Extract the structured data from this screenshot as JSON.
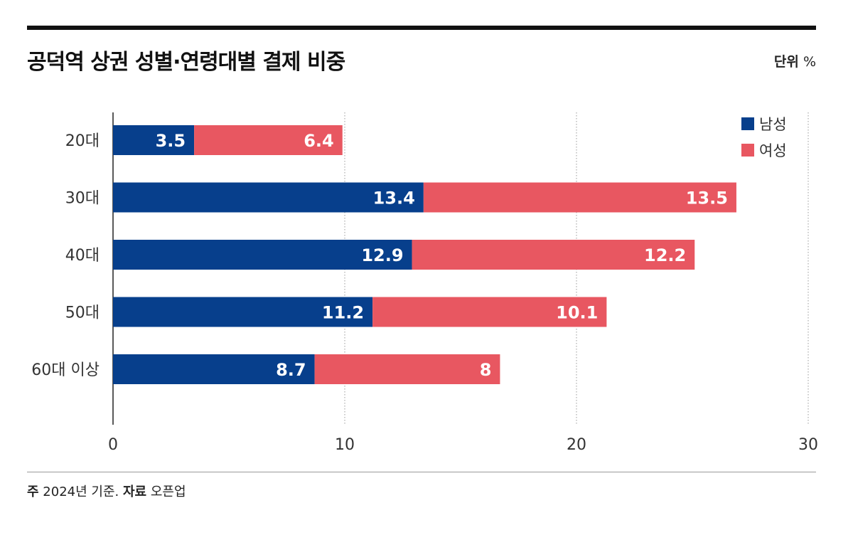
{
  "header": {
    "title": "공덕역 상권 성별·연령대별 결제 비중",
    "unit_label": "단위",
    "unit_value": "%"
  },
  "footer": {
    "note_label": "주",
    "note_text": "2024년 기준.",
    "source_label": "자료",
    "source_text": "오픈업"
  },
  "colors": {
    "male": "#073f8c",
    "female": "#e85761"
  },
  "chart_data": {
    "type": "bar",
    "orientation": "horizontal",
    "stacked": true,
    "categories": [
      "20대",
      "30대",
      "40대",
      "50대",
      "60대 이상"
    ],
    "series": [
      {
        "name": "남성",
        "values": [
          3.5,
          13.4,
          12.9,
          11.2,
          8.7
        ],
        "value_labels": [
          "3.5",
          "13.4",
          "12.9",
          "11.2",
          "8.7"
        ]
      },
      {
        "name": "여성",
        "values": [
          6.4,
          13.5,
          12.2,
          10.1,
          8
        ],
        "value_labels": [
          "6.4",
          "13.5",
          "12.2",
          "10.1",
          "8"
        ]
      }
    ],
    "xlim": [
      0,
      30
    ],
    "x_ticks": [
      "0",
      "10",
      "20",
      "30"
    ],
    "grid": true,
    "legend_position": "top-right"
  }
}
